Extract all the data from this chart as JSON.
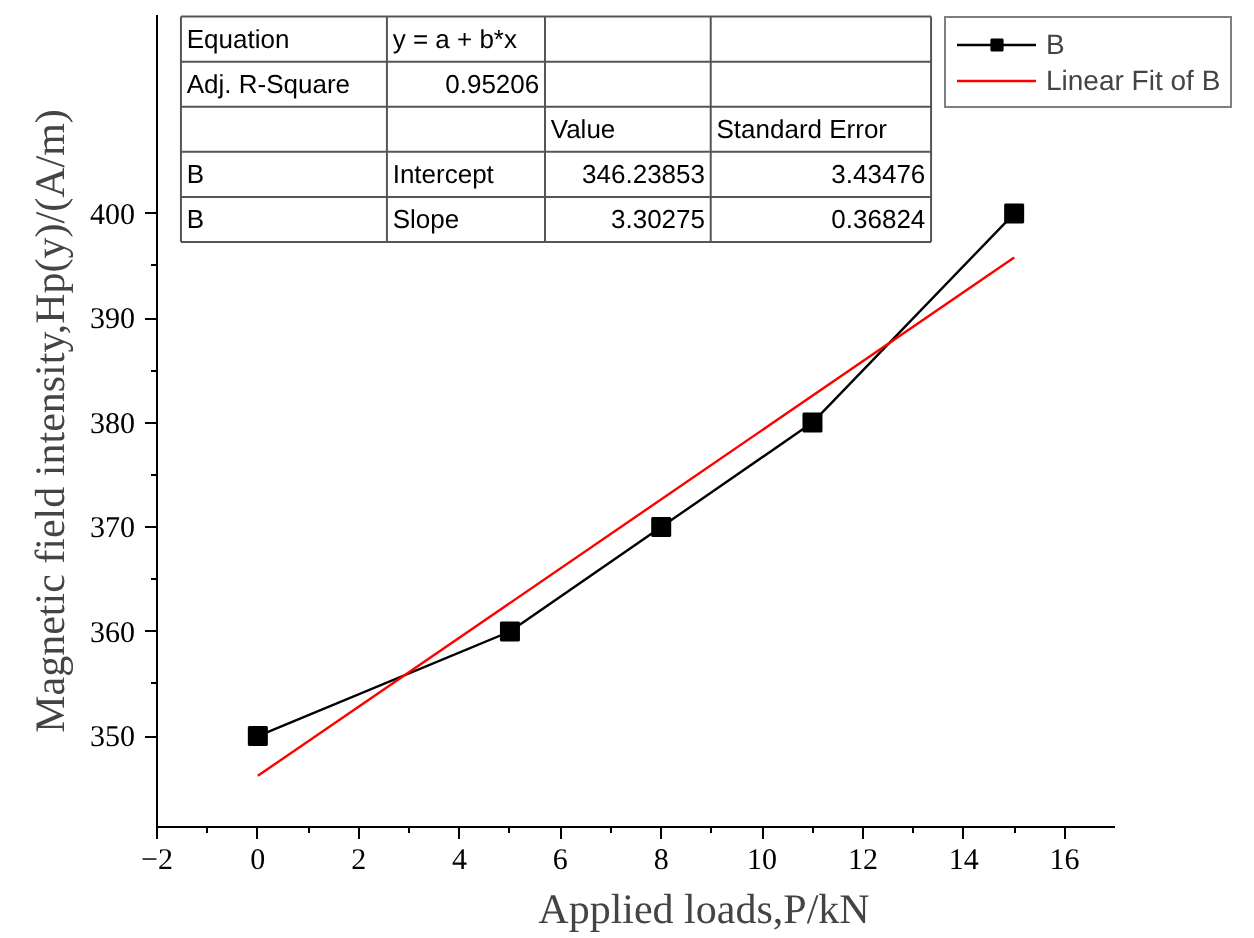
{
  "chart_data": {
    "type": "line",
    "xlabel": "Applied loads,P/kN",
    "ylabel": "Magnetic field intensity,Hp(y)/(A/m)",
    "xlim": [
      -2,
      17
    ],
    "xticks": [
      -2,
      0,
      2,
      4,
      6,
      8,
      10,
      12,
      14,
      16
    ],
    "ylim": [
      341.3,
      419
    ],
    "yticks": [
      350,
      360,
      370,
      380,
      390,
      400
    ],
    "series": [
      {
        "name": "B",
        "color": "#000000",
        "marker": "square",
        "x": [
          0,
          5,
          8,
          11,
          15
        ],
        "values": [
          350,
          360,
          370,
          380,
          400
        ]
      },
      {
        "name": "Linear Fit of B",
        "color": "#ff0000",
        "marker": "none",
        "x": [
          0,
          15
        ],
        "values": [
          346.2,
          395.8
        ]
      }
    ],
    "annotations": [
      "Equation",
      "y = a + b*x",
      "Adj. R-Square",
      "0.95206",
      "Value",
      "Standard Error",
      "B",
      "Intercept",
      "346.23853",
      "3.43476",
      "B",
      "Slope",
      "3.30275",
      "0.36824"
    ],
    "legend": "top right",
    "grid": false
  }
}
